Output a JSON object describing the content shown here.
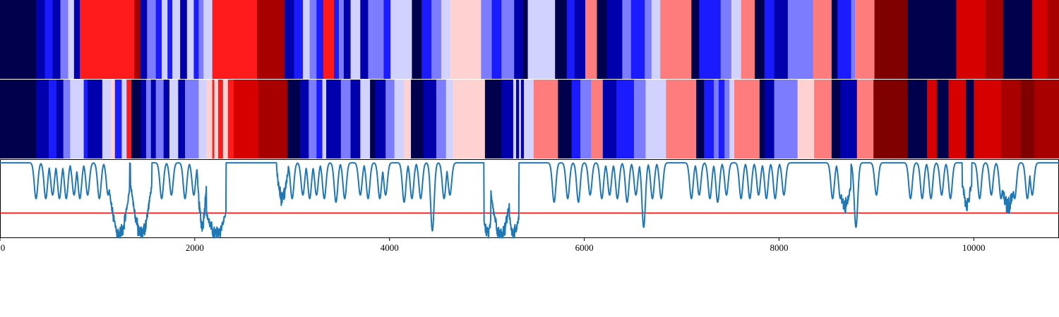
{
  "chart_data": [
    {
      "type": "heatmap",
      "name": "segment-band-top",
      "x_domain": [
        0,
        10875
      ],
      "palette": {
        "-3": "#00004c",
        "-2": "#0000ad",
        "-1": "#1b1bff",
        "0": "#7c7cff",
        "1": "#d2d2ff",
        "2": "#ffd2d2",
        "3": "#ff7c7c",
        "4": "#ff1b1b",
        "5": "#d60000",
        "6": "#a80000",
        "7": "#800000"
      },
      "segments": [
        [
          0,
          370,
          -3
        ],
        [
          370,
          460,
          -2
        ],
        [
          460,
          540,
          -1
        ],
        [
          540,
          620,
          -2
        ],
        [
          620,
          700,
          0
        ],
        [
          700,
          760,
          1
        ],
        [
          760,
          820,
          -2
        ],
        [
          820,
          1380,
          4
        ],
        [
          1380,
          1440,
          6
        ],
        [
          1440,
          1510,
          -2
        ],
        [
          1510,
          1600,
          0
        ],
        [
          1600,
          1660,
          -1
        ],
        [
          1660,
          1720,
          1
        ],
        [
          1720,
          1770,
          -1
        ],
        [
          1770,
          1850,
          1
        ],
        [
          1850,
          1920,
          -2
        ],
        [
          1920,
          1990,
          1
        ],
        [
          1990,
          2040,
          -1
        ],
        [
          2040,
          2090,
          0
        ],
        [
          2090,
          2180,
          1
        ],
        [
          2180,
          2640,
          4
        ],
        [
          2640,
          2920,
          6
        ],
        [
          2920,
          3020,
          -2
        ],
        [
          3020,
          3110,
          -1
        ],
        [
          3110,
          3180,
          1
        ],
        [
          3180,
          3250,
          0
        ],
        [
          3250,
          3320,
          -1
        ],
        [
          3320,
          3430,
          4
        ],
        [
          3430,
          3480,
          -1
        ],
        [
          3480,
          3530,
          0
        ],
        [
          3530,
          3600,
          -2
        ],
        [
          3600,
          3700,
          1
        ],
        [
          3700,
          3780,
          -2
        ],
        [
          3780,
          3940,
          0
        ],
        [
          3940,
          4010,
          -1
        ],
        [
          4010,
          4230,
          1
        ],
        [
          4230,
          4330,
          -3
        ],
        [
          4330,
          4430,
          -1
        ],
        [
          4430,
          4530,
          0
        ],
        [
          4530,
          4620,
          1
        ],
        [
          4620,
          4940,
          2
        ],
        [
          4940,
          5050,
          0
        ],
        [
          5050,
          5150,
          -1
        ],
        [
          5150,
          5280,
          0
        ],
        [
          5280,
          5370,
          -2
        ],
        [
          5370,
          5420,
          -3
        ],
        [
          5420,
          5700,
          1
        ],
        [
          5700,
          5820,
          -3
        ],
        [
          5820,
          5900,
          -1
        ],
        [
          5900,
          6010,
          -2
        ],
        [
          6010,
          6130,
          3
        ],
        [
          6130,
          6230,
          -3
        ],
        [
          6230,
          6390,
          -2
        ],
        [
          6390,
          6480,
          0
        ],
        [
          6480,
          6620,
          -1
        ],
        [
          6620,
          6690,
          0
        ],
        [
          6690,
          6780,
          1
        ],
        [
          6780,
          7100,
          3
        ],
        [
          7100,
          7180,
          -3
        ],
        [
          7180,
          7400,
          -1
        ],
        [
          7400,
          7510,
          0
        ],
        [
          7510,
          7610,
          1
        ],
        [
          7610,
          7750,
          3
        ],
        [
          7750,
          7850,
          -3
        ],
        [
          7850,
          7950,
          -1
        ],
        [
          7950,
          8090,
          -2
        ],
        [
          8090,
          8350,
          0
        ],
        [
          8350,
          8540,
          3
        ],
        [
          8540,
          8600,
          -3
        ],
        [
          8600,
          8740,
          -1
        ],
        [
          8740,
          8780,
          0
        ],
        [
          8780,
          8980,
          3
        ],
        [
          8980,
          9320,
          7
        ],
        [
          9320,
          9820,
          -3
        ],
        [
          9820,
          10120,
          5
        ],
        [
          10120,
          10300,
          6
        ],
        [
          10300,
          10600,
          -3
        ],
        [
          10600,
          10750,
          5
        ],
        [
          10750,
          10875,
          6
        ]
      ]
    },
    {
      "type": "heatmap",
      "name": "segment-band-bottom",
      "x_domain": [
        0,
        10875
      ],
      "segments": [
        [
          0,
          370,
          -3
        ],
        [
          370,
          500,
          -2
        ],
        [
          500,
          580,
          -1
        ],
        [
          580,
          650,
          -2
        ],
        [
          650,
          720,
          0
        ],
        [
          720,
          860,
          1
        ],
        [
          860,
          900,
          -1
        ],
        [
          900,
          1050,
          -2
        ],
        [
          1050,
          1140,
          1
        ],
        [
          1140,
          1180,
          2
        ],
        [
          1180,
          1250,
          -1
        ],
        [
          1250,
          1300,
          1
        ],
        [
          1300,
          1350,
          4
        ],
        [
          1350,
          1450,
          -3
        ],
        [
          1450,
          1500,
          -2
        ],
        [
          1500,
          1550,
          0
        ],
        [
          1550,
          1600,
          -2
        ],
        [
          1600,
          1680,
          0
        ],
        [
          1680,
          1740,
          -2
        ],
        [
          1740,
          1830,
          1
        ],
        [
          1830,
          1900,
          -2
        ],
        [
          1900,
          2040,
          0
        ],
        [
          2040,
          2120,
          1
        ],
        [
          2120,
          2180,
          2
        ],
        [
          2180,
          2200,
          4
        ],
        [
          2200,
          2240,
          2
        ],
        [
          2240,
          2290,
          4
        ],
        [
          2290,
          2340,
          2
        ],
        [
          2340,
          2400,
          4
        ],
        [
          2400,
          2650,
          5
        ],
        [
          2650,
          2950,
          6
        ],
        [
          2950,
          3080,
          -3
        ],
        [
          3080,
          3170,
          -2
        ],
        [
          3170,
          3250,
          0
        ],
        [
          3250,
          3310,
          -1
        ],
        [
          3310,
          3350,
          1
        ],
        [
          3350,
          3500,
          -2
        ],
        [
          3500,
          3600,
          0
        ],
        [
          3600,
          3700,
          -2
        ],
        [
          3700,
          3800,
          1
        ],
        [
          3800,
          3850,
          -3
        ],
        [
          3850,
          3960,
          -2
        ],
        [
          3960,
          4050,
          0
        ],
        [
          4050,
          4150,
          1
        ],
        [
          4150,
          4220,
          2
        ],
        [
          4220,
          4350,
          -3
        ],
        [
          4350,
          4480,
          -2
        ],
        [
          4480,
          4580,
          0
        ],
        [
          4580,
          4650,
          1
        ],
        [
          4650,
          4980,
          2
        ],
        [
          4980,
          5150,
          -3
        ],
        [
          5150,
          5270,
          -2
        ],
        [
          5270,
          5300,
          1
        ],
        [
          5300,
          5330,
          -2
        ],
        [
          5330,
          5350,
          1
        ],
        [
          5350,
          5380,
          -2
        ],
        [
          5380,
          5480,
          1
        ],
        [
          5480,
          5730,
          3
        ],
        [
          5730,
          5870,
          -3
        ],
        [
          5870,
          5960,
          -1
        ],
        [
          5960,
          6070,
          0
        ],
        [
          6070,
          6190,
          3
        ],
        [
          6190,
          6330,
          -2
        ],
        [
          6330,
          6510,
          -1
        ],
        [
          6510,
          6630,
          0
        ],
        [
          6630,
          6840,
          1
        ],
        [
          6840,
          7150,
          3
        ],
        [
          7150,
          7230,
          -3
        ],
        [
          7230,
          7330,
          -1
        ],
        [
          7330,
          7380,
          0
        ],
        [
          7380,
          7440,
          -1
        ],
        [
          7440,
          7490,
          0
        ],
        [
          7490,
          7540,
          1
        ],
        [
          7540,
          7800,
          3
        ],
        [
          7800,
          7850,
          -3
        ],
        [
          7850,
          7950,
          -2
        ],
        [
          7950,
          8190,
          0
        ],
        [
          8190,
          8360,
          2
        ],
        [
          8360,
          8540,
          3
        ],
        [
          8540,
          8630,
          -3
        ],
        [
          8630,
          8800,
          -2
        ],
        [
          8800,
          8970,
          3
        ],
        [
          8970,
          9320,
          7
        ],
        [
          9320,
          9520,
          -3
        ],
        [
          9520,
          9620,
          5
        ],
        [
          9620,
          9740,
          -3
        ],
        [
          9740,
          9920,
          5
        ],
        [
          9920,
          10000,
          -3
        ],
        [
          10000,
          10280,
          5
        ],
        [
          10280,
          10480,
          6
        ],
        [
          10480,
          10620,
          7
        ],
        [
          10620,
          10875,
          6
        ]
      ]
    },
    {
      "type": "line",
      "name": "signal-trace",
      "xlim": [
        0,
        10875
      ],
      "ylim": [
        -0.05,
        1.05
      ],
      "xticks": [
        "0",
        "2000",
        "4000",
        "6000",
        "8000",
        "10000"
      ],
      "xtick_values": [
        0,
        2000,
        4000,
        6000,
        8000,
        10000
      ],
      "line_color": "#1f77b4",
      "threshold": {
        "value": 0.3,
        "color": "#ff0000"
      },
      "baseline": 1.0,
      "dips": [
        [
          370,
          0.5
        ],
        [
          470,
          0.5
        ],
        [
          540,
          0.55
        ],
        [
          610,
          0.5
        ],
        [
          680,
          0.5
        ],
        [
          760,
          0.55
        ],
        [
          820,
          0.5
        ],
        [
          900,
          0.55
        ],
        [
          1020,
          0.5
        ],
        [
          1110,
          0.55
        ],
        [
          1390,
          0.45
        ],
        [
          1470,
          0.5
        ],
        [
          1660,
          0.5
        ],
        [
          1760,
          0.55
        ],
        [
          1900,
          0.5
        ],
        [
          1990,
          0.55
        ],
        [
          2900,
          0.55
        ],
        [
          3000,
          0.5
        ],
        [
          3110,
          0.55
        ],
        [
          3180,
          0.5
        ],
        [
          3250,
          0.55
        ],
        [
          3330,
          0.5
        ],
        [
          3450,
          0.45
        ],
        [
          3540,
          0.5
        ],
        [
          3700,
          0.55
        ],
        [
          3780,
          0.5
        ],
        [
          3900,
          0.5
        ],
        [
          3960,
          0.55
        ],
        [
          4150,
          0.45
        ],
        [
          4230,
          0.5
        ],
        [
          4320,
          0.5
        ],
        [
          4440,
          0.05
        ],
        [
          4560,
          0.5
        ],
        [
          4620,
          0.55
        ],
        [
          5690,
          0.45
        ],
        [
          5830,
          0.5
        ],
        [
          5940,
          0.45
        ],
        [
          6060,
          0.55
        ],
        [
          6180,
          0.5
        ],
        [
          6260,
          0.55
        ],
        [
          6340,
          0.5
        ],
        [
          6440,
          0.45
        ],
        [
          6530,
          0.55
        ],
        [
          6610,
          0.1
        ],
        [
          6700,
          0.5
        ],
        [
          6790,
          0.5
        ],
        [
          7100,
          0.5
        ],
        [
          7180,
          0.55
        ],
        [
          7290,
          0.5
        ],
        [
          7370,
          0.45
        ],
        [
          7460,
          0.55
        ],
        [
          7610,
          0.5
        ],
        [
          7700,
          0.5
        ],
        [
          7790,
          0.55
        ],
        [
          7870,
          0.5
        ],
        [
          7960,
          0.5
        ],
        [
          8050,
          0.55
        ],
        [
          8550,
          0.5
        ],
        [
          8630,
          0.5
        ],
        [
          8790,
          0.1
        ],
        [
          9000,
          0.55
        ],
        [
          9350,
          0.5
        ],
        [
          9470,
          0.5
        ],
        [
          9560,
          0.5
        ],
        [
          9670,
          0.55
        ],
        [
          9760,
          0.5
        ],
        [
          10060,
          0.5
        ],
        [
          10180,
          0.55
        ],
        [
          10280,
          0.5
        ],
        [
          10420,
          0.5
        ],
        [
          10550,
          0.5
        ],
        [
          10600,
          0.55
        ]
      ],
      "noisy_regions": [
        [
          1120,
          1330,
          0.62,
          0.0
        ],
        [
          1340,
          1560,
          0.72,
          0.0
        ],
        [
          2020,
          2130,
          0.95,
          0.15
        ],
        [
          2120,
          2320,
          0.3,
          0.0
        ],
        [
          2840,
          2960,
          0.9,
          0.5
        ],
        [
          4970,
          5040,
          0.2,
          0.0
        ],
        [
          5030,
          5260,
          0.7,
          0.0
        ],
        [
          5230,
          5330,
          0.25,
          0.0
        ],
        [
          8620,
          8740,
          0.7,
          0.4
        ],
        [
          9880,
          9980,
          0.72,
          0.45
        ],
        [
          10280,
          10420,
          0.7,
          0.4
        ]
      ]
    }
  ]
}
